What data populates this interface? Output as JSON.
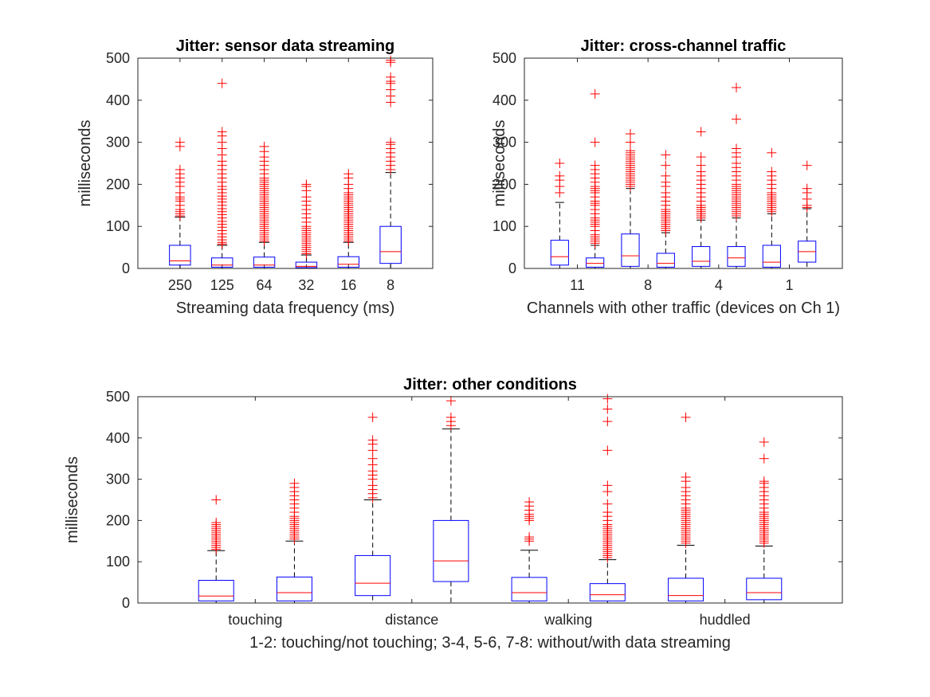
{
  "chart_data": [
    {
      "type": "box",
      "title": "Jitter: sensor data streaming",
      "xlabel": "Streaming data frequency (ms)",
      "ylabel": "milliseconds",
      "ylim": [
        0,
        500
      ],
      "yticks": [
        0,
        100,
        200,
        300,
        400,
        500
      ],
      "grid": false,
      "categories": [
        "250",
        "125",
        "64",
        "32",
        "16",
        "8"
      ],
      "boxes": [
        {
          "q1": 8,
          "median": 18,
          "q3": 55,
          "whisker_low": 0,
          "whisker_high": 122,
          "outliers": [
            125,
            130,
            135,
            140,
            150,
            160,
            165,
            170,
            180,
            195,
            205,
            215,
            225,
            235,
            290,
            300
          ]
        },
        {
          "q1": 3,
          "median": 8,
          "q3": 25,
          "whisker_low": 0,
          "whisker_high": 55,
          "outliers": [
            58,
            62,
            68,
            75,
            82,
            90,
            98,
            105,
            112,
            120,
            128,
            135,
            142,
            150,
            158,
            165,
            172,
            180,
            188,
            195,
            205,
            215,
            225,
            235,
            245,
            255,
            270,
            285,
            300,
            315,
            325,
            440
          ]
        },
        {
          "q1": 3,
          "median": 8,
          "q3": 27,
          "whisker_low": 0,
          "whisker_high": 62,
          "outliers": [
            65,
            70,
            75,
            80,
            85,
            90,
            95,
            100,
            105,
            110,
            115,
            120,
            125,
            130,
            135,
            140,
            145,
            150,
            155,
            160,
            165,
            170,
            175,
            180,
            185,
            190,
            195,
            200,
            205,
            210,
            215,
            225,
            235,
            245,
            255,
            265,
            278,
            290
          ]
        },
        {
          "q1": 2,
          "median": 5,
          "q3": 15,
          "whisker_low": 0,
          "whisker_high": 32,
          "outliers": [
            35,
            40,
            45,
            50,
            55,
            60,
            65,
            70,
            75,
            80,
            85,
            90,
            95,
            100,
            110,
            120,
            130,
            140,
            150,
            160,
            170,
            185,
            195,
            200
          ]
        },
        {
          "q1": 3,
          "median": 10,
          "q3": 28,
          "whisker_low": 0,
          "whisker_high": 62,
          "outliers": [
            65,
            70,
            75,
            80,
            85,
            90,
            95,
            100,
            105,
            110,
            115,
            120,
            125,
            130,
            135,
            140,
            145,
            150,
            155,
            160,
            165,
            170,
            175,
            180,
            190,
            200,
            215,
            225
          ]
        },
        {
          "q1": 12,
          "median": 40,
          "q3": 100,
          "whisker_low": 0,
          "whisker_high": 228,
          "outliers": [
            235,
            245,
            255,
            265,
            275,
            285,
            295,
            300,
            395,
            410,
            425,
            440,
            445,
            455,
            490,
            495
          ]
        }
      ]
    },
    {
      "type": "box",
      "title": "Jitter: cross-channel traffic",
      "xlabel": "Channels with other traffic (devices on Ch 1)",
      "ylabel": "milliseconds",
      "ylim": [
        0,
        500
      ],
      "yticks": [
        0,
        100,
        200,
        300,
        400,
        500
      ],
      "grid": false,
      "categories": [
        "11",
        "8",
        "4",
        "1"
      ],
      "boxes": [
        {
          "q1": 8,
          "median": 28,
          "q3": 67,
          "whisker_low": 0,
          "whisker_high": 157,
          "outliers": [
            180,
            195,
            210,
            220,
            250
          ]
        },
        {
          "q1": 3,
          "median": 12,
          "q3": 25,
          "whisker_low": 0,
          "whisker_high": 55,
          "outliers": [
            60,
            65,
            70,
            75,
            80,
            90,
            100,
            105,
            110,
            115,
            120,
            130,
            140,
            150,
            155,
            160,
            170,
            180,
            185,
            190,
            195,
            205,
            215,
            225,
            235,
            245,
            300,
            415
          ]
        },
        {
          "q1": 5,
          "median": 30,
          "q3": 82,
          "whisker_low": 0,
          "whisker_high": 190,
          "outliers": [
            195,
            200,
            205,
            210,
            215,
            220,
            225,
            230,
            235,
            240,
            245,
            250,
            255,
            260,
            265,
            270,
            275,
            280,
            300,
            320
          ]
        },
        {
          "q1": 3,
          "median": 12,
          "q3": 36,
          "whisker_low": 0,
          "whisker_high": 85,
          "outliers": [
            90,
            95,
            100,
            105,
            110,
            115,
            120,
            125,
            130,
            135,
            140,
            150,
            160,
            170,
            180,
            195,
            205,
            220,
            245,
            270
          ]
        },
        {
          "q1": 5,
          "median": 17,
          "q3": 52,
          "whisker_low": 0,
          "whisker_high": 115,
          "outliers": [
            120,
            125,
            130,
            135,
            140,
            145,
            150,
            160,
            170,
            180,
            190,
            200,
            210,
            220,
            230,
            245,
            265,
            325
          ]
        },
        {
          "q1": 5,
          "median": 25,
          "q3": 52,
          "whisker_low": 0,
          "whisker_high": 120,
          "outliers": [
            125,
            130,
            135,
            140,
            145,
            150,
            155,
            160,
            165,
            170,
            175,
            180,
            185,
            190,
            195,
            200,
            210,
            220,
            230,
            240,
            250,
            265,
            275,
            285,
            355,
            430
          ]
        },
        {
          "q1": 3,
          "median": 15,
          "q3": 55,
          "whisker_low": 0,
          "whisker_high": 130,
          "outliers": [
            135,
            140,
            145,
            150,
            155,
            160,
            165,
            170,
            175,
            180,
            190,
            200,
            210,
            220,
            230,
            275
          ]
        },
        {
          "q1": 15,
          "median": 40,
          "q3": 65,
          "whisker_low": 0,
          "whisker_high": 142,
          "outliers": [
            145,
            150,
            165,
            180,
            190,
            245
          ]
        }
      ]
    },
    {
      "type": "box",
      "title": "Jitter: other conditions",
      "xlabel": "1-2: touching/not touching; 3-4, 5-6, 7-8: without/with data streaming",
      "ylabel": "milliseconds",
      "ylim": [
        0,
        500
      ],
      "yticks": [
        0,
        100,
        200,
        300,
        400,
        500
      ],
      "grid": false,
      "categories": [
        "touching",
        "distance",
        "walking",
        "huddled"
      ],
      "boxes": [
        {
          "q1": 5,
          "median": 17,
          "q3": 55,
          "whisker_low": 0,
          "whisker_high": 127,
          "outliers": [
            130,
            135,
            140,
            145,
            150,
            155,
            160,
            165,
            170,
            175,
            180,
            185,
            190,
            195,
            250
          ]
        },
        {
          "q1": 5,
          "median": 25,
          "q3": 63,
          "whisker_low": 0,
          "whisker_high": 150,
          "outliers": [
            155,
            160,
            165,
            170,
            175,
            180,
            185,
            190,
            195,
            200,
            205,
            210,
            220,
            230,
            240,
            250,
            260,
            270,
            280,
            290
          ]
        },
        {
          "q1": 18,
          "median": 48,
          "q3": 115,
          "whisker_low": 0,
          "whisker_high": 250,
          "outliers": [
            255,
            265,
            275,
            285,
            300,
            310,
            320,
            335,
            350,
            370,
            385,
            395,
            450
          ]
        },
        {
          "q1": 52,
          "median": 102,
          "q3": 200,
          "whisker_low": 0,
          "whisker_high": 422,
          "outliers": [
            430,
            440,
            450,
            490
          ]
        },
        {
          "q1": 5,
          "median": 25,
          "q3": 62,
          "whisker_low": 0,
          "whisker_high": 128,
          "outliers": [
            150,
            155,
            160,
            200,
            205,
            210,
            215,
            225,
            235,
            245
          ]
        },
        {
          "q1": 5,
          "median": 20,
          "q3": 47,
          "whisker_low": 0,
          "whisker_high": 105,
          "outliers": [
            110,
            115,
            120,
            125,
            130,
            135,
            140,
            145,
            150,
            155,
            160,
            165,
            170,
            175,
            180,
            185,
            190,
            200,
            210,
            220,
            240,
            270,
            285,
            370,
            440,
            470,
            495
          ]
        },
        {
          "q1": 5,
          "median": 18,
          "q3": 60,
          "whisker_low": 0,
          "whisker_high": 140,
          "outliers": [
            145,
            150,
            155,
            160,
            165,
            170,
            175,
            180,
            185,
            190,
            195,
            200,
            205,
            210,
            215,
            220,
            225,
            230,
            240,
            250,
            260,
            270,
            280,
            295,
            305,
            450
          ]
        },
        {
          "q1": 8,
          "median": 25,
          "q3": 60,
          "whisker_low": 0,
          "whisker_high": 138,
          "outliers": [
            145,
            150,
            155,
            160,
            165,
            170,
            175,
            180,
            185,
            190,
            195,
            200,
            205,
            210,
            215,
            220,
            230,
            240,
            250,
            260,
            270,
            280,
            290,
            295,
            350,
            390
          ]
        }
      ]
    }
  ]
}
